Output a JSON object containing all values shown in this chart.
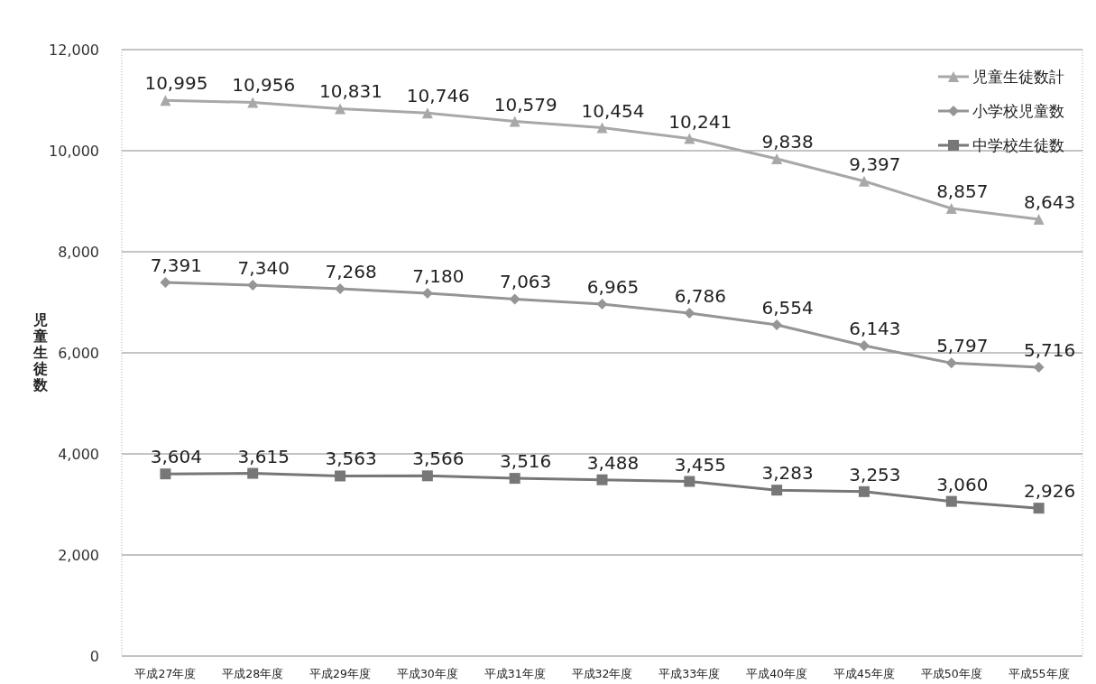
{
  "chart_data": {
    "type": "line",
    "ylabel": "児童生徒数",
    "categories": [
      "平成27年度",
      "平成28年度",
      "平成29年度",
      "平成30年度",
      "平成31年度",
      "平成32年度",
      "平成33年度",
      "平成40年度",
      "平成45年度",
      "平成50年度",
      "平成55年度"
    ],
    "series": [
      {
        "name": "児童生徒数計",
        "color": "#a8a8a8",
        "marker": "triangle",
        "values": [
          10995,
          10956,
          10831,
          10746,
          10579,
          10454,
          10241,
          9838,
          9397,
          8857,
          8643
        ],
        "value_labels": [
          "10,995",
          "10,956",
          "10,831",
          "10,746",
          "10,579",
          "10,454",
          "10,241",
          "9,838",
          "9,397",
          "8,857",
          "8,643"
        ]
      },
      {
        "name": "小学校児童数",
        "color": "#959595",
        "marker": "diamond",
        "values": [
          7391,
          7340,
          7268,
          7180,
          7063,
          6965,
          6786,
          6554,
          6143,
          5797,
          5716
        ],
        "value_labels": [
          "7,391",
          "7,340",
          "7,268",
          "7,180",
          "7,063",
          "6,965",
          "6,786",
          "6,554",
          "6,143",
          "5,797",
          "5,716"
        ]
      },
      {
        "name": "中学校生徒数",
        "color": "#777777",
        "marker": "square",
        "values": [
          3604,
          3615,
          3563,
          3566,
          3516,
          3488,
          3455,
          3283,
          3253,
          3060,
          2926
        ],
        "value_labels": [
          "3,604",
          "3,615",
          "3,563",
          "3,566",
          "3,516",
          "3,488",
          "3,455",
          "3,283",
          "3,253",
          "3,060",
          "2,926"
        ]
      }
    ],
    "ylim": [
      0,
      12000
    ],
    "yticks": [
      {
        "value": 0,
        "label": "0"
      },
      {
        "value": 2000,
        "label": "2,000"
      },
      {
        "value": 4000,
        "label": "4,000"
      },
      {
        "value": 6000,
        "label": "6,000"
      },
      {
        "value": 8000,
        "label": "8,000"
      },
      {
        "value": 10000,
        "label": "10,000"
      },
      {
        "value": 12000,
        "label": "12,000"
      }
    ],
    "grid": "y",
    "legend": "top right"
  }
}
